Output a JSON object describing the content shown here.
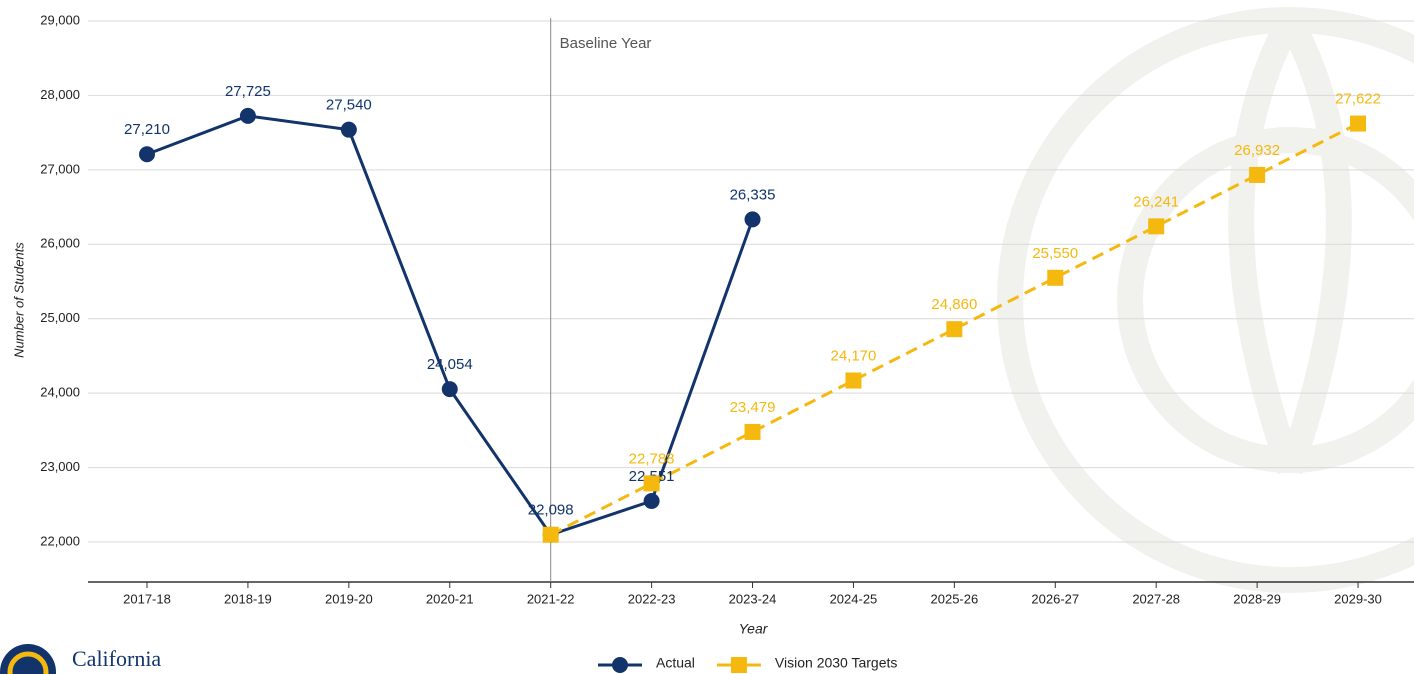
{
  "chart_data": {
    "type": "line",
    "y_label": "Number of Students",
    "x_label": "Year",
    "annotation": "Baseline Year",
    "baseline_category": "2021-22",
    "logo_text": "California",
    "categories": [
      "2017-18",
      "2018-19",
      "2019-20",
      "2020-21",
      "2021-22",
      "2022-23",
      "2023-24",
      "2024-25",
      "2025-26",
      "2026-27",
      "2027-28",
      "2028-29",
      "2029-30"
    ],
    "series": [
      {
        "name": "Actual",
        "color": "#12346b",
        "marker": "circle",
        "values": [
          27210,
          27725,
          27540,
          24054,
          22098,
          22551,
          26335,
          null,
          null,
          null,
          null,
          null,
          null
        ],
        "value_labels": [
          "27,210",
          "27,725",
          "27,540",
          "24,054",
          "22,098",
          "22,551",
          "26,335",
          null,
          null,
          null,
          null,
          null,
          null
        ]
      },
      {
        "name": "Vision 2030 Targets",
        "color": "#f5b80f",
        "marker": "square",
        "dashed": true,
        "values": [
          null,
          null,
          null,
          null,
          22098,
          22788,
          23479,
          24170,
          24860,
          25550,
          26241,
          26932,
          27622
        ],
        "value_labels": [
          null,
          null,
          null,
          null,
          null,
          "22,788",
          "23,479",
          "24,170",
          "24,860",
          "25,550",
          "26,241",
          "26,932",
          "27,622"
        ]
      }
    ],
    "ylim": [
      21463,
      29000
    ],
    "yticks": [
      {
        "value": 22000,
        "label": "22,000"
      },
      {
        "value": 23000,
        "label": "23,000"
      },
      {
        "value": 24000,
        "label": "24,000"
      },
      {
        "value": 25000,
        "label": "25,000"
      },
      {
        "value": 26000,
        "label": "26,000"
      },
      {
        "value": 27000,
        "label": "27,000"
      },
      {
        "value": 28000,
        "label": "28,000"
      },
      {
        "value": 29000,
        "label": "29,000"
      }
    ],
    "grid": true
  }
}
